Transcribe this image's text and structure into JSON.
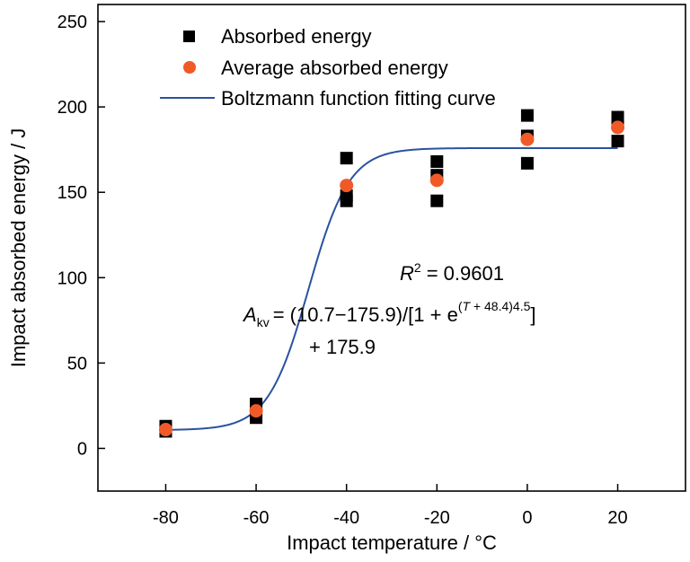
{
  "chart_data": {
    "type": "scatter",
    "xlabel": "Impact temperature / °C",
    "ylabel": "Impact absorbed energy / J",
    "xlim": [
      -95,
      35
    ],
    "ylim": [
      -25,
      260
    ],
    "xticks": [
      -80,
      -60,
      -40,
      -20,
      0,
      20
    ],
    "yticks": [
      0,
      50,
      100,
      150,
      200,
      250
    ],
    "xtick_labels": [
      "-80",
      "-60",
      "-40",
      "-20",
      "0",
      "20"
    ],
    "ytick_labels": [
      "0",
      "50",
      "100",
      "150",
      "200",
      "250"
    ],
    "grid": false,
    "legend_position": "top-left",
    "series": [
      {
        "name": "Absorbed energy",
        "kind": "points",
        "marker": "square",
        "color": "#000000",
        "points": [
          [
            -80,
            13
          ],
          [
            -80,
            10
          ],
          [
            -60,
            26
          ],
          [
            -60,
            22
          ],
          [
            -60,
            18
          ],
          [
            -40,
            170
          ],
          [
            -40,
            148
          ],
          [
            -40,
            145
          ],
          [
            -20,
            168
          ],
          [
            -20,
            160
          ],
          [
            -20,
            145
          ],
          [
            0,
            195
          ],
          [
            0,
            183
          ],
          [
            0,
            167
          ],
          [
            20,
            194
          ],
          [
            20,
            190
          ],
          [
            20,
            180
          ]
        ]
      },
      {
        "name": "Average absorbed energy",
        "kind": "points",
        "marker": "circle",
        "color": "#ef5a28",
        "points": [
          [
            -80,
            11
          ],
          [
            -60,
            22
          ],
          [
            -40,
            154
          ],
          [
            -20,
            157
          ],
          [
            0,
            181
          ],
          [
            20,
            188
          ]
        ]
      },
      {
        "name": "Boltzmann function fitting curve",
        "kind": "line",
        "color": "#2a52a0",
        "function": "boltzmann",
        "A1": 10.7,
        "A2": 175.9,
        "x0": -48.4,
        "dx": 4.5,
        "x_range": [
          -80,
          20
        ]
      }
    ],
    "annotations": {
      "r2": {
        "symbol": "R",
        "superscript": "2",
        "value": "= 0.9601"
      },
      "equation": {
        "symbol": "A",
        "subscript": "kv",
        "line1_part1": "= (10.7",
        "minus": "−",
        "line1_part2": "175.9)/[1 + e",
        "exponent_var": "T",
        "exponent_rest": " + 48.4)4.5",
        "exponent_open": "(",
        "close_bracket": "]",
        "line2": "+ 175.9"
      }
    }
  }
}
